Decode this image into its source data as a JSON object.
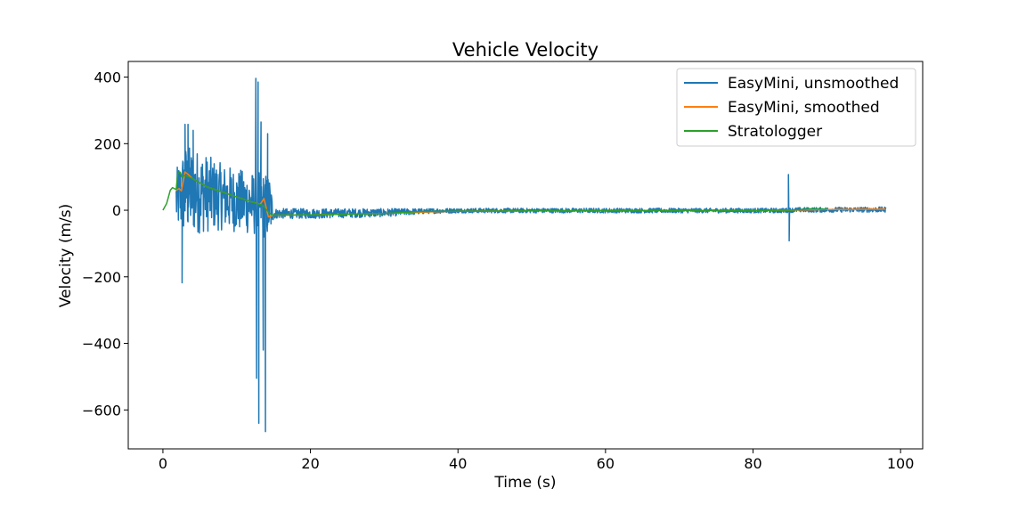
{
  "chart_data": {
    "type": "line",
    "title": "Vehicle Velocity",
    "xlabel": "Time (s)",
    "ylabel": "Velocity (m/s)",
    "xlim": [
      -4.7,
      103.0
    ],
    "ylim": [
      -717,
      447
    ],
    "xticks": [
      0,
      20,
      40,
      60,
      80,
      100
    ],
    "yticks": [
      -600,
      -400,
      -200,
      0,
      200,
      400
    ],
    "xtick_labels": [
      "0",
      "20",
      "40",
      "60",
      "80",
      "100"
    ],
    "ytick_labels": [
      "−600",
      "−400",
      "−200",
      "0",
      "200",
      "400"
    ],
    "grid": false,
    "legend_position": "top-right",
    "series": [
      {
        "name": "EasyMini, unsmoothed",
        "color": "#1f77b4",
        "envelope": [
          {
            "x": 1.8,
            "low": -60,
            "high": 120
          },
          {
            "x": 3,
            "low": -80,
            "high": 200
          },
          {
            "x": 5,
            "low": -70,
            "high": 180
          },
          {
            "x": 8,
            "low": -60,
            "high": 140
          },
          {
            "x": 11,
            "low": -70,
            "high": 120
          },
          {
            "x": 14.5,
            "low": -90,
            "high": 110
          },
          {
            "x": 15,
            "low": -25,
            "high": 5
          },
          {
            "x": 20,
            "low": -25,
            "high": 5
          },
          {
            "x": 30,
            "low": -20,
            "high": 5
          },
          {
            "x": 36,
            "low": -10,
            "high": 5
          },
          {
            "x": 40,
            "low": -8,
            "high": 6
          },
          {
            "x": 60,
            "low": -8,
            "high": 6
          },
          {
            "x": 84,
            "low": -8,
            "high": 6
          },
          {
            "x": 86,
            "low": -6,
            "high": 8
          },
          {
            "x": 98,
            "low": -6,
            "high": 10
          }
        ],
        "spikes": [
          {
            "x": 2.0,
            "y": 100
          },
          {
            "x": 2.6,
            "y": -218
          },
          {
            "x": 3.0,
            "y": 258
          },
          {
            "x": 3.4,
            "y": 258
          },
          {
            "x": 4.1,
            "y": 240
          },
          {
            "x": 12.6,
            "y": 396
          },
          {
            "x": 12.7,
            "y": -505
          },
          {
            "x": 12.9,
            "y": 385
          },
          {
            "x": 13.0,
            "y": -640
          },
          {
            "x": 13.3,
            "y": 265
          },
          {
            "x": 13.6,
            "y": -420
          },
          {
            "x": 13.9,
            "y": -665
          },
          {
            "x": 14.2,
            "y": 230
          },
          {
            "x": 84.8,
            "y": 107
          },
          {
            "x": 84.9,
            "y": -92
          }
        ]
      },
      {
        "name": "EasyMini, smoothed",
        "color": "#ff7f0e",
        "x": [
          1.8,
          2.2,
          2.5,
          3.0,
          3.4,
          4,
          6,
          8,
          10,
          12,
          13.2,
          13.7,
          14.3,
          15,
          20,
          25,
          30,
          35,
          40,
          50,
          60,
          70,
          80,
          85,
          90,
          95,
          98
        ],
        "y": [
          60,
          65,
          58,
          115,
          108,
          95,
          70,
          55,
          40,
          25,
          18,
          35,
          -20,
          -15,
          -14,
          -12,
          -10,
          -6,
          -3,
          -2,
          -1,
          -1,
          -1,
          0,
          2,
          3,
          3
        ]
      },
      {
        "name": "Stratologger",
        "color": "#2ca02c",
        "x": [
          0,
          0.5,
          1.0,
          1.3,
          1.8,
          2.0,
          2.3,
          2.6,
          3.0,
          4,
          6,
          8,
          10,
          12,
          13.5,
          14.5,
          15,
          20,
          25,
          30,
          35,
          40,
          50,
          60,
          70,
          80,
          85,
          88,
          90
        ],
        "y": [
          0,
          20,
          60,
          68,
          62,
          110,
          115,
          100,
          105,
          95,
          70,
          55,
          40,
          25,
          15,
          -10,
          -15,
          -14,
          -12,
          -10,
          -4,
          -3,
          -2,
          -1,
          -1,
          -1,
          0,
          4,
          3
        ]
      }
    ]
  }
}
